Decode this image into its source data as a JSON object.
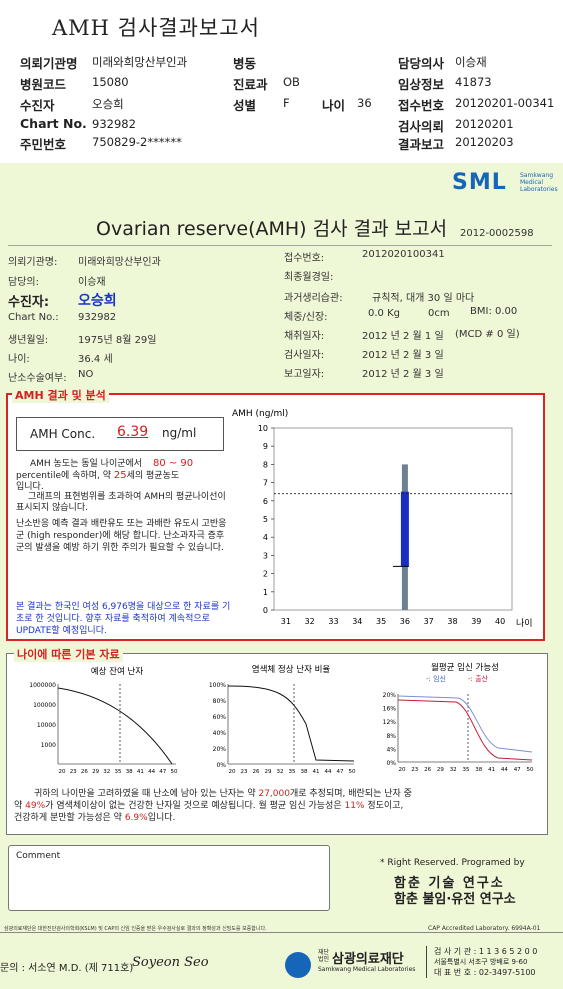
{
  "header": {
    "title": "AMH 검사결과보고서",
    "rows": [
      {
        "l1": "의뢰기관명",
        "v1": "미래와희망산부인과",
        "l2": "병동",
        "v2": "",
        "l3": "담당의사",
        "v3": "이승재"
      },
      {
        "l1": "병원코드",
        "v1": "15080",
        "l2": "진료과",
        "v2": "OB",
        "l3": "임상정보",
        "v3": "41873"
      },
      {
        "l1": "수진자",
        "v1": "오승희",
        "l2": "성별",
        "v2": "F",
        "l2b": "나이",
        "v2b": "36",
        "l3": "접수번호",
        "v3": "20120201-00341"
      },
      {
        "l1": "Chart No.",
        "v1": "932982",
        "l2": "",
        "v2": "",
        "l3": "검사의뢰",
        "v3": "20120201"
      },
      {
        "l1": "주민번호",
        "v1": "750829-2******",
        "l2": "",
        "v2": "",
        "l3": "결과보고",
        "v3": "20120203"
      }
    ]
  },
  "brand": {
    "logo": "SML",
    "sub1": "Samkwang",
    "sub2": "Medical",
    "sub3": "Laboratories"
  },
  "report": {
    "title": "Ovarian reserve(AMH) 검사 결과 보고서",
    "number": "2012-0002598",
    "left": [
      {
        "label": "의뢰기관명:",
        "value": "미래와희망산부인과"
      },
      {
        "label": "담당의:",
        "value": "이승재"
      },
      {
        "label": "수진자:",
        "value": "오승희"
      },
      {
        "label": "Chart No.:",
        "value": "932982"
      },
      {
        "label": "생년월일:",
        "value": "1975년 8월 29일"
      },
      {
        "label": "나이:",
        "value": "36.4 세"
      },
      {
        "label": "난소수술여부:",
        "value": "NO"
      }
    ],
    "right": {
      "receipt_label": "접수번호:",
      "receipt": "2012020100341",
      "lmp_label": "최종월경일:",
      "lmp": "",
      "history_label": "과거생리습관:",
      "history": "규칙적, 대개   30 일 마다",
      "body_label": "체중/신장:",
      "weight": "0.0 Kg",
      "height": "0cm",
      "bmi": "BMI:   0.00",
      "collect_label": "채취일자:",
      "collect": "2012 년 2 월 1 일",
      "mcd": "(MCD # 0 일)",
      "test_label": "검사일자:",
      "test": "2012 년 2 월 3 일",
      "reportdate_label": "보고일자:",
      "reportdate": "2012 년 2 월 3 일"
    }
  },
  "amh": {
    "section_title": "AMH 결과 및 분석",
    "conc_label": "AMH Conc.",
    "conc_value": "6.39",
    "conc_unit": "ng/ml",
    "p1a": "AMH 농도는 동일 나이군에서",
    "p1b": "80 ~  90",
    "p1c": "percentile에 속하며, 약",
    "p1d": "25",
    "p1e": "세의 평균농도",
    "p1f": "입니다.",
    "p2": "그래프의 표현범위를 초과하여 AMH의 평균나이선이 표시되지 않습니다.",
    "p3": "난소반응 예측 결과 배란유도 또는 과배란 유도시 고반응군 (high responder)에 해당 합니다. 난소과자극 증후군의 발생을 예방 하기 위한 주의가 필요할 수 있습니다.",
    "p4": "본 결과는 한국인 여성 6,976명을 대상으로 한 자료를 기초로 한 것입니다. 향후 자료를 축적하여 계속적으로 UPDATE할 예정입니다."
  },
  "chart_data": [
    {
      "type": "bar",
      "title": "",
      "ylabel": "AMH (ng/ml)",
      "xlabel": "나이",
      "x": [
        31,
        32,
        33,
        34,
        35,
        36,
        37,
        38,
        39,
        40
      ],
      "yticks": [
        0,
        1,
        2,
        3,
        4,
        5,
        6,
        7,
        8,
        9,
        10
      ],
      "ylim": [
        0,
        10
      ],
      "reference_range": {
        "x": 36,
        "low": 0,
        "high": 8
      },
      "percentile_box": {
        "x": 36,
        "low": 2.4,
        "high": 6.5
      },
      "patient_value": 6.39
    },
    {
      "type": "line",
      "title": "예상 잔여 난자",
      "yticks": [
        "1000000",
        "100000",
        "10000",
        "1000"
      ],
      "xticks": [
        "20",
        "23",
        "26",
        "29",
        "32",
        "35",
        "38",
        "41",
        "44",
        "47",
        "50"
      ]
    },
    {
      "type": "line",
      "title": "염색체 정상 난자 비율",
      "yticks": [
        "100%",
        "80%",
        "60%",
        "40%",
        "20%",
        "0%"
      ],
      "xticks": [
        "20",
        "23",
        "26",
        "29",
        "32",
        "35",
        "38",
        "41",
        "44",
        "47",
        "50"
      ]
    },
    {
      "type": "line",
      "title": "월평균 임신 가능성",
      "yticks": [
        "20%",
        "16%",
        "12%",
        "8%",
        "4%",
        "0%"
      ],
      "legend": [
        "임신",
        "출산"
      ],
      "xticks": [
        "20",
        "23",
        "26",
        "29",
        "32",
        "35",
        "38",
        "41",
        "44",
        "47",
        "50"
      ]
    }
  ],
  "age": {
    "section_title": "나이에 따른 기본 자료",
    "s1": "귀하의 나이만을 고려하였을 때 난소에 남아 있는 난자는 약",
    "s1v": "27,000",
    "s1b": "개로 추정되며, 배란되는 난자 중",
    "s2a": "약",
    "s2v": "49%",
    "s2b": "가 염색체이상이 없는 건강한 난자일 것으로 예상됩니다. 월 평균 임신 가능성은",
    "s2v2": "11%",
    "s2c": "정도이고,",
    "s3a": "건강하게 분만할 가능성은 약",
    "s3v": "6.9%",
    "s3b": "입니다."
  },
  "comment": {
    "label": "Comment"
  },
  "footer": {
    "rights": "* Right Reserved. Programed by",
    "org1": "함춘 기술 연구소",
    "org2": "함춘 불임·유전 연구소",
    "note": "삼광의료재단은 대한진단검사의학회(KSLM) 및 CAP의 신임 인증을 받은 우수검사실로 결과의 정확성과 신빙도를 보증합니다.",
    "cap": "CAP Accredited Laboratory. 6994A-01",
    "doctor": "문의 : 서소연 M.D. (제 711호)",
    "sign": "Soyeon Seo",
    "foundation_prefix": "재단 법인",
    "foundation": "삼광의료재단",
    "foundation_en": "Samkwang Medical Laboratories",
    "inst_no": "검 사 기 관 : 1 1 3 6 5 2 0 0",
    "addr": "서울특별시 서초구 방배로 9-60",
    "phone": "대 표 번 호 : 02-3497-5100"
  }
}
